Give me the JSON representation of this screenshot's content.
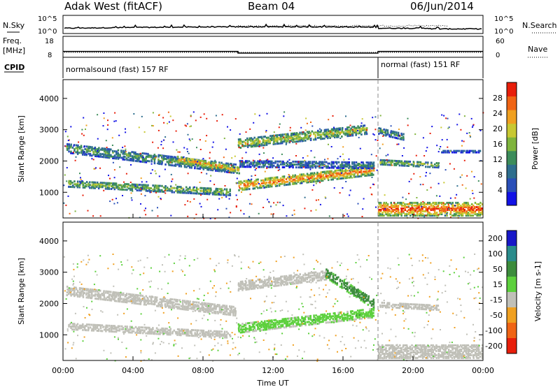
{
  "header": {
    "station": "Adak West (fitACF)",
    "beam": "Beam 04",
    "date": "06/Jun/2014"
  },
  "top_panels": {
    "nsky_label": "N.Sky",
    "nsearch_label": "N.Search",
    "nsky_ticks": [
      "10^5",
      "10^0"
    ],
    "nsky_right_ticks": [
      "10^5",
      "10^0"
    ],
    "freq_label": "Freq.",
    "freq_unit": "[MHz]",
    "freq_ticks": [
      "18",
      "8"
    ],
    "nave_label": "Nave",
    "nave_ticks": [
      "60",
      "0"
    ],
    "cpid_label": "CPID",
    "cpid_modes": [
      {
        "name": "normalsound (fast) 157 RF",
        "start_hour": 0,
        "end_hour": 18
      },
      {
        "name": "normal (fast) 151 RF",
        "start_hour": 18,
        "end_hour": 24
      }
    ],
    "freq_mhz": [
      {
        "start_hour": 0,
        "end_hour": 10,
        "value": 10.8
      },
      {
        "start_hour": 10,
        "end_hour": 18,
        "value": 10.0
      },
      {
        "start_hour": 18,
        "end_hour": 24,
        "value": 10.8
      }
    ]
  },
  "chart_data": [
    {
      "type": "heatmap",
      "name": "Power",
      "xlabel": "Time UT",
      "ylabel": "Slant Range [km]",
      "colorbar_label": "Power [dB]",
      "x_range_hours": [
        0,
        24
      ],
      "ylim": [
        180,
        4600
      ],
      "yticks": [
        1000,
        2000,
        3000,
        4000
      ],
      "colorbar_ticks": [
        4,
        8,
        12,
        16,
        20,
        24,
        28
      ],
      "colorbar_range": [
        0,
        32
      ],
      "colors": [
        "#1212e6",
        "#2a4fb8",
        "#2e6e8e",
        "#3c8c5a",
        "#7fb43c",
        "#c8c832",
        "#f0a020",
        "#f06414",
        "#e81e0a"
      ],
      "bands": [
        {
          "start": 0.2,
          "end": 9.8,
          "range_start": 2450,
          "range_end": 1800,
          "width": 300,
          "power": 14
        },
        {
          "start": 0.3,
          "end": 9.5,
          "range_start": 1320,
          "range_end": 1050,
          "width": 220,
          "power": 17
        },
        {
          "start": 6.5,
          "end": 10.0,
          "range_start": 2100,
          "range_end": 1750,
          "width": 220,
          "power": 26
        },
        {
          "start": 10.0,
          "end": 17.8,
          "range_start": 1250,
          "range_end": 1750,
          "width": 300,
          "power": 27
        },
        {
          "start": 10.0,
          "end": 17.3,
          "range_start": 2600,
          "range_end": 3050,
          "width": 300,
          "power": 19
        },
        {
          "start": 10.1,
          "end": 17.8,
          "range_start": 1950,
          "range_end": 1900,
          "width": 200,
          "power": 11
        },
        {
          "start": 18.0,
          "end": 24.0,
          "range_start": 500,
          "range_end": 500,
          "width": 420,
          "power": 30
        },
        {
          "start": 18.1,
          "end": 21.5,
          "range_start": 2000,
          "range_end": 1900,
          "width": 150,
          "power": 18
        },
        {
          "start": 21.5,
          "end": 24.0,
          "range_start": 2350,
          "range_end": 2350,
          "width": 80,
          "power": 6
        },
        {
          "start": 18.0,
          "end": 19.5,
          "range_start": 3000,
          "range_end": 2800,
          "width": 200,
          "power": 13
        }
      ]
    },
    {
      "type": "heatmap",
      "name": "Velocity",
      "xlabel": "Time UT",
      "ylabel": "Slant Range [km]",
      "colorbar_label": "Velocity [m s-1]",
      "x_range_hours": [
        0,
        24
      ],
      "xticks": [
        "00:00",
        "04:00",
        "08:00",
        "12:00",
        "16:00",
        "20:00",
        "00:00"
      ],
      "ylim": [
        180,
        4600
      ],
      "yticks": [
        1000,
        2000,
        3000,
        4000
      ],
      "colorbar_ticks": [
        "200",
        "100",
        "50",
        "15",
        "-15",
        "-50",
        "-100",
        "-200"
      ],
      "colors": [
        "#1818c8",
        "#2a8c8c",
        "#3c8c3c",
        "#5cd03c",
        "#c0c0b8",
        "#f0a020",
        "#f06414",
        "#e81e0a"
      ],
      "bands": [
        {
          "start": 0.2,
          "end": 9.8,
          "range_start": 2450,
          "range_end": 1800,
          "width": 300,
          "velocity": 0
        },
        {
          "start": 0.3,
          "end": 9.5,
          "range_start": 1320,
          "range_end": 1050,
          "width": 220,
          "velocity": 5
        },
        {
          "start": 10.0,
          "end": 17.8,
          "range_start": 1250,
          "range_end": 1750,
          "width": 300,
          "velocity": 30
        },
        {
          "start": 10.0,
          "end": 15.0,
          "range_start": 2600,
          "range_end": 2950,
          "width": 300,
          "velocity": 0
        },
        {
          "start": 15.0,
          "end": 17.8,
          "range_start": 3000,
          "range_end": 2000,
          "width": 300,
          "velocity": 60
        },
        {
          "start": 18.0,
          "end": 24.0,
          "range_start": 500,
          "range_end": 500,
          "width": 420,
          "velocity": 0
        },
        {
          "start": 18.1,
          "end": 21.5,
          "range_start": 2000,
          "range_end": 1900,
          "width": 150,
          "velocity": 0
        }
      ]
    }
  ]
}
